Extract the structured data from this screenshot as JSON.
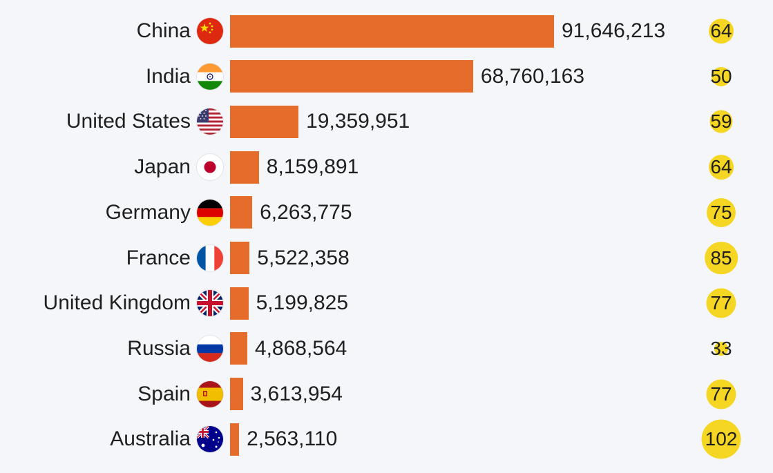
{
  "chart_data": {
    "type": "bar",
    "orientation": "horizontal",
    "categories": [
      "China",
      "India",
      "United States",
      "Japan",
      "Germany",
      "France",
      "United Kingdom",
      "Russia",
      "Spain",
      "Australia"
    ],
    "values": [
      91646213,
      68760163,
      19359951,
      8159891,
      6263775,
      5522358,
      5199825,
      4868564,
      3613954,
      2563110
    ],
    "value_labels": [
      "91,646,213",
      "68,760,163",
      "19,359,951",
      "8,159,891",
      "6,263,775",
      "5,522,358",
      "5,199,825",
      "4,868,564",
      "3,613,954",
      "2,563,110"
    ],
    "secondary_values": [
      64,
      50,
      59,
      64,
      75,
      85,
      77,
      33,
      77,
      102
    ],
    "secondary_labels": [
      "64",
      "50",
      "59",
      "64",
      "75",
      "85",
      "77",
      "33",
      "77",
      "102"
    ],
    "flag_icons": [
      "china-flag-icon",
      "india-flag-icon",
      "united-states-flag-icon",
      "japan-flag-icon",
      "germany-flag-icon",
      "france-flag-icon",
      "united-kingdom-flag-icon",
      "russia-flag-icon",
      "spain-flag-icon",
      "australia-flag-icon"
    ],
    "xlim": [
      0,
      91646213
    ],
    "bar_color": "#e66c2c",
    "badge_color": "#f5d623",
    "grid": false,
    "legend": "none"
  }
}
